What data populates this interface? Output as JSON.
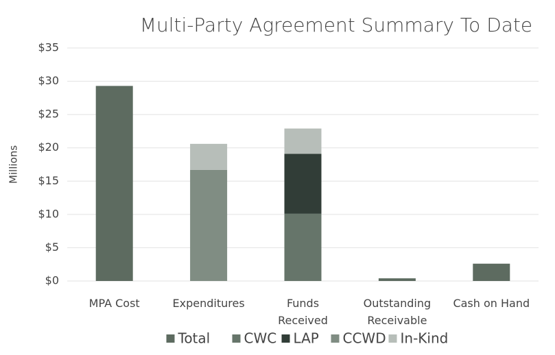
{
  "chart_data": {
    "type": "stacked_bar",
    "title": "Multi-Party Agreement Summary To Date",
    "ylabel": "Millions",
    "categories": [
      "MPA Cost",
      "Expenditures",
      "Funds\nReceived",
      "Outstanding\nReceivable",
      "Cash on Hand"
    ],
    "series": [
      {
        "name": "Total",
        "color": "#5d6b60",
        "values": [
          29.3,
          null,
          null,
          0.4,
          2.6
        ]
      },
      {
        "name": "CWC",
        "color": "#66756a",
        "values": [
          null,
          null,
          10.1,
          null,
          null
        ]
      },
      {
        "name": "LAP",
        "color": "#313d37",
        "values": [
          null,
          null,
          9.0,
          null,
          null
        ]
      },
      {
        "name": "CCWD",
        "color": "#808d83",
        "values": [
          null,
          16.7,
          null,
          null,
          null
        ]
      },
      {
        "name": "In-Kind",
        "color": "#b7beb9",
        "values": [
          null,
          3.9,
          3.8,
          null,
          null
        ]
      }
    ],
    "ylim": [
      0,
      35
    ],
    "yticks": [
      {
        "value": 0,
        "label": "$0"
      },
      {
        "value": 5,
        "label": "$5"
      },
      {
        "value": 10,
        "label": "$10"
      },
      {
        "value": 15,
        "label": "$15"
      },
      {
        "value": 20,
        "label": "$20"
      },
      {
        "value": 25,
        "label": "$25"
      },
      {
        "value": 30,
        "label": "$30"
      },
      {
        "value": 35,
        "label": "$35"
      }
    ],
    "grid": true,
    "legend": "bottom"
  }
}
